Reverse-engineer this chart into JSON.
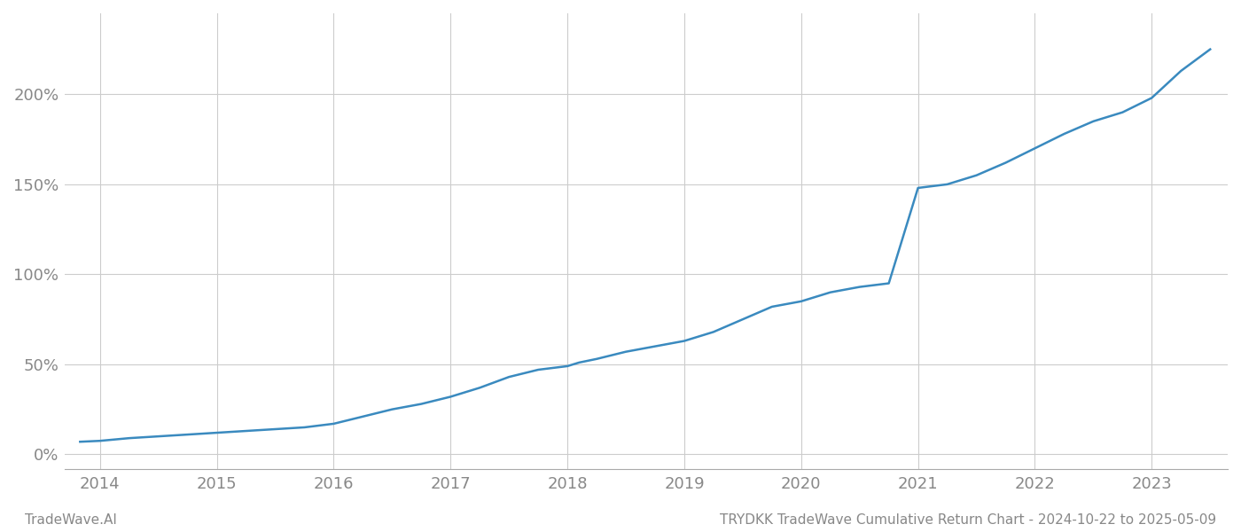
{
  "footer_left": "TradeWave.AI",
  "footer_right": "TRYDKK TradeWave Cumulative Return Chart - 2024-10-22 to 2025-05-09",
  "line_color": "#3a8abf",
  "background_color": "#ffffff",
  "grid_color": "#cccccc",
  "x_years": [
    2014,
    2015,
    2016,
    2017,
    2018,
    2019,
    2020,
    2021,
    2022,
    2023
  ],
  "data_x": [
    2013.83,
    2014.0,
    2014.25,
    2014.5,
    2014.75,
    2015.0,
    2015.25,
    2015.5,
    2015.75,
    2016.0,
    2016.25,
    2016.5,
    2016.75,
    2017.0,
    2017.25,
    2017.5,
    2017.75,
    2018.0,
    2018.1,
    2018.25,
    2018.5,
    2018.75,
    2019.0,
    2019.25,
    2019.5,
    2019.75,
    2020.0,
    2020.1,
    2020.25,
    2020.5,
    2020.75,
    2021.0,
    2021.25,
    2021.5,
    2021.75,
    2022.0,
    2022.25,
    2022.5,
    2022.75,
    2023.0,
    2023.25,
    2023.5
  ],
  "data_y": [
    7,
    7.5,
    9,
    10,
    11,
    12,
    13,
    14,
    15,
    17,
    21,
    25,
    28,
    32,
    37,
    43,
    47,
    49,
    51,
    53,
    57,
    60,
    63,
    68,
    75,
    82,
    85,
    87,
    90,
    93,
    95,
    148,
    150,
    155,
    162,
    170,
    178,
    185,
    190,
    198,
    213,
    225
  ],
  "ylim": [
    -8,
    245
  ],
  "yticks": [
    0,
    50,
    100,
    150,
    200
  ],
  "ytick_labels": [
    "0%",
    "50%",
    "100%",
    "150%",
    "200%"
  ],
  "xlim": [
    2013.7,
    2023.65
  ],
  "line_width": 1.8,
  "footer_fontsize": 11,
  "tick_fontsize": 13,
  "tick_color": "#888888"
}
